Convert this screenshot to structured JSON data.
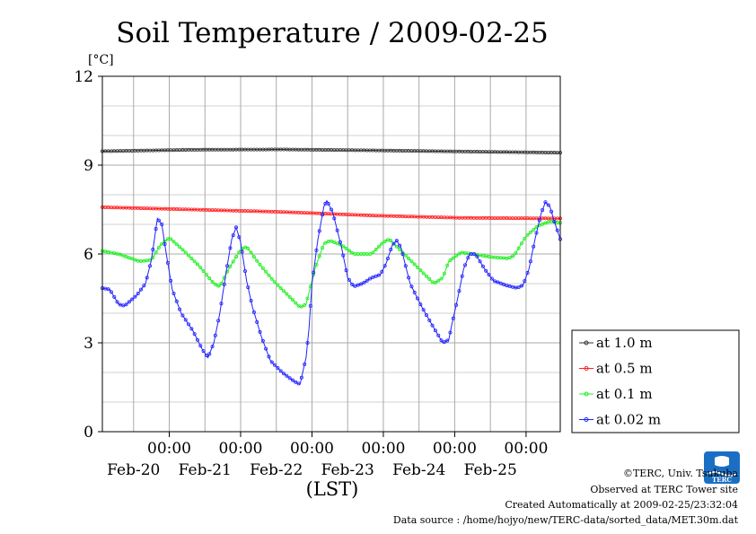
{
  "title": "Soil Temperature / 2009-02-25",
  "unit_label": "[°C]",
  "xlabel": "(LST)",
  "credits": {
    "copyright": "©TERC, Univ. Tsukuba",
    "observed": "Observed at TERC Tower site",
    "created": "Created Automatically at 2009-02-25/23:32:04",
    "source": "Data source : /home/hojyo/new/TERC-data/sorted_data/MET.30m.dat"
  },
  "logo": {
    "text": "TERC",
    "color": "#1a6fc4"
  },
  "chart_data": {
    "type": "line",
    "title": "Soil Temperature / 2009-02-25",
    "ylabel": "[°C]",
    "xlabel": "(LST)",
    "xlim_hours": [
      -10.5,
      143.5
    ],
    "ylim": [
      0,
      12
    ],
    "yticks": [
      0,
      3,
      6,
      9,
      12
    ],
    "x_tick_labels": [
      {
        "time": "00:00",
        "date": "Feb-20"
      },
      {
        "time": "00:00",
        "date": "Feb-21"
      },
      {
        "time": "00:00",
        "date": "Feb-22"
      },
      {
        "time": "00:00",
        "date": "Feb-23"
      },
      {
        "time": "00:00",
        "date": "Feb-24"
      },
      {
        "time": "00:00",
        "date": "Feb-25"
      }
    ],
    "grid": true,
    "legend_position": "right",
    "series": [
      {
        "name": "at 1.0 m",
        "color": "#333333",
        "points": [
          [
            -10.5,
            9.47
          ],
          [
            20,
            9.52
          ],
          [
            50,
            9.53
          ],
          [
            80,
            9.5
          ],
          [
            110,
            9.46
          ],
          [
            143.5,
            9.42
          ]
        ]
      },
      {
        "name": "at 0.5 m",
        "color": "#ff2020",
        "points": [
          [
            -10.5,
            7.58
          ],
          [
            20,
            7.5
          ],
          [
            50,
            7.42
          ],
          [
            80,
            7.3
          ],
          [
            110,
            7.22
          ],
          [
            143.5,
            7.2
          ]
        ]
      },
      {
        "name": "at 0.1 m",
        "color": "#22ee22",
        "points": [
          [
            -10.5,
            6.1
          ],
          [
            -5,
            6.0
          ],
          [
            2,
            5.75
          ],
          [
            6,
            5.8
          ],
          [
            9,
            6.3
          ],
          [
            12,
            6.55
          ],
          [
            17,
            6.1
          ],
          [
            22,
            5.6
          ],
          [
            27,
            5.0
          ],
          [
            29,
            4.9
          ],
          [
            32,
            5.5
          ],
          [
            36,
            6.15
          ],
          [
            38,
            6.25
          ],
          [
            42,
            5.7
          ],
          [
            47,
            5.1
          ],
          [
            52,
            4.6
          ],
          [
            56,
            4.2
          ],
          [
            58,
            4.3
          ],
          [
            61,
            5.5
          ],
          [
            64,
            6.35
          ],
          [
            66,
            6.45
          ],
          [
            70,
            6.3
          ],
          [
            74,
            6.0
          ],
          [
            80,
            6.0
          ],
          [
            84,
            6.4
          ],
          [
            86,
            6.5
          ],
          [
            89,
            6.2
          ],
          [
            93,
            5.8
          ],
          [
            98,
            5.3
          ],
          [
            101,
            5.0
          ],
          [
            104,
            5.2
          ],
          [
            106,
            5.75
          ],
          [
            110,
            6.05
          ],
          [
            114,
            6.0
          ],
          [
            120,
            5.9
          ],
          [
            126,
            5.85
          ],
          [
            128,
            5.95
          ],
          [
            132,
            6.6
          ],
          [
            136,
            6.95
          ],
          [
            140,
            7.1
          ],
          [
            143.5,
            7.05
          ]
        ]
      },
      {
        "name": "at 0.02 m",
        "color": "#2222ff",
        "points": [
          [
            -10.5,
            4.85
          ],
          [
            -8,
            4.8
          ],
          [
            -5,
            4.3
          ],
          [
            -3,
            4.25
          ],
          [
            1,
            4.6
          ],
          [
            4,
            5.0
          ],
          [
            6,
            5.8
          ],
          [
            8,
            7.2
          ],
          [
            9.5,
            7.0
          ],
          [
            11,
            6.0
          ],
          [
            13,
            4.8
          ],
          [
            16,
            4.0
          ],
          [
            20,
            3.4
          ],
          [
            23,
            2.8
          ],
          [
            25,
            2.5
          ],
          [
            27,
            3.0
          ],
          [
            29,
            4.0
          ],
          [
            31,
            5.3
          ],
          [
            33,
            6.5
          ],
          [
            34.5,
            6.9
          ],
          [
            36,
            6.4
          ],
          [
            38,
            5.1
          ],
          [
            40,
            4.2
          ],
          [
            43,
            3.2
          ],
          [
            46,
            2.4
          ],
          [
            50,
            2.0
          ],
          [
            54,
            1.7
          ],
          [
            56,
            1.6
          ],
          [
            58,
            2.5
          ],
          [
            59,
            3.5
          ],
          [
            60,
            5.0
          ],
          [
            62,
            6.5
          ],
          [
            64,
            7.6
          ],
          [
            65,
            7.8
          ],
          [
            67,
            7.4
          ],
          [
            70,
            6.2
          ],
          [
            72,
            5.2
          ],
          [
            74,
            4.9
          ],
          [
            77,
            5.0
          ],
          [
            80,
            5.2
          ],
          [
            83,
            5.3
          ],
          [
            85,
            5.7
          ],
          [
            87,
            6.3
          ],
          [
            88.5,
            6.45
          ],
          [
            90,
            6.2
          ],
          [
            93,
            5.0
          ],
          [
            97,
            4.2
          ],
          [
            101,
            3.5
          ],
          [
            104,
            3.0
          ],
          [
            106,
            3.1
          ],
          [
            107,
            3.6
          ],
          [
            109,
            4.5
          ],
          [
            111,
            5.5
          ],
          [
            113,
            6.0
          ],
          [
            115,
            6.0
          ],
          [
            118,
            5.5
          ],
          [
            121,
            5.1
          ],
          [
            125,
            4.95
          ],
          [
            129,
            4.85
          ],
          [
            131,
            4.95
          ],
          [
            133,
            5.5
          ],
          [
            135,
            6.5
          ],
          [
            137,
            7.35
          ],
          [
            138.5,
            7.75
          ],
          [
            140,
            7.6
          ],
          [
            141.5,
            7.1
          ],
          [
            143.5,
            6.5
          ]
        ]
      }
    ]
  }
}
